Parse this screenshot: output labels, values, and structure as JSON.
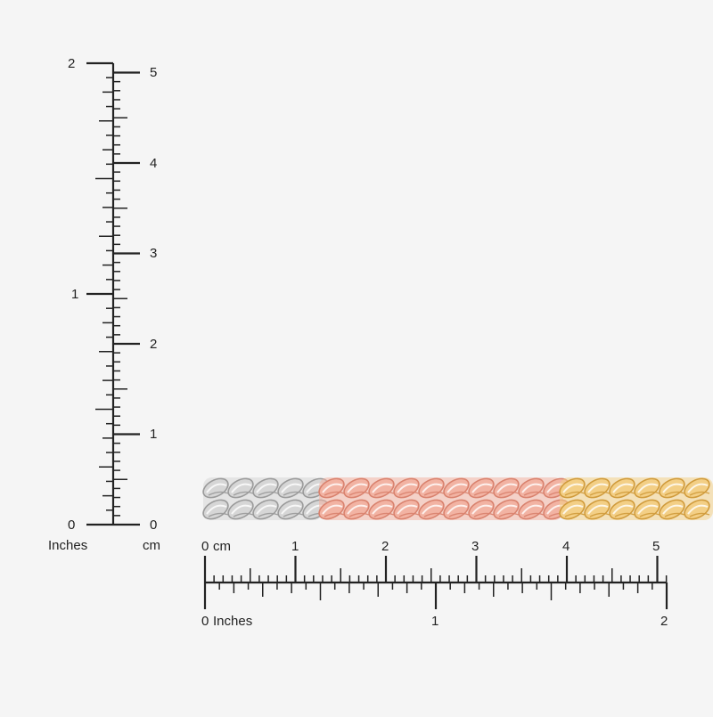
{
  "vertical_ruler": {
    "inch_labels": [
      "0",
      "1",
      "2"
    ],
    "cm_labels": [
      "0",
      "1",
      "2",
      "3",
      "4",
      "5"
    ],
    "inch_unit": "Inches",
    "cm_unit": "cm"
  },
  "horizontal_ruler": {
    "cm_labels": [
      "0",
      "1",
      "2",
      "3",
      "4",
      "5"
    ],
    "cm_unit": "cm",
    "inch_labels": [
      "0",
      "1",
      "2"
    ],
    "inch_unit": "Inches"
  },
  "chain": {
    "segments": [
      {
        "name": "white-gold",
        "color": "#d6d6d6",
        "shade": "#9a9a9a"
      },
      {
        "name": "rose-gold",
        "color": "#f2b3a3",
        "shade": "#d9826e"
      },
      {
        "name": "yellow-gold",
        "color": "#f3cf86",
        "shade": "#d09b3c"
      }
    ]
  },
  "colors": {
    "ink": "#222222",
    "background": "#f5f5f5"
  }
}
